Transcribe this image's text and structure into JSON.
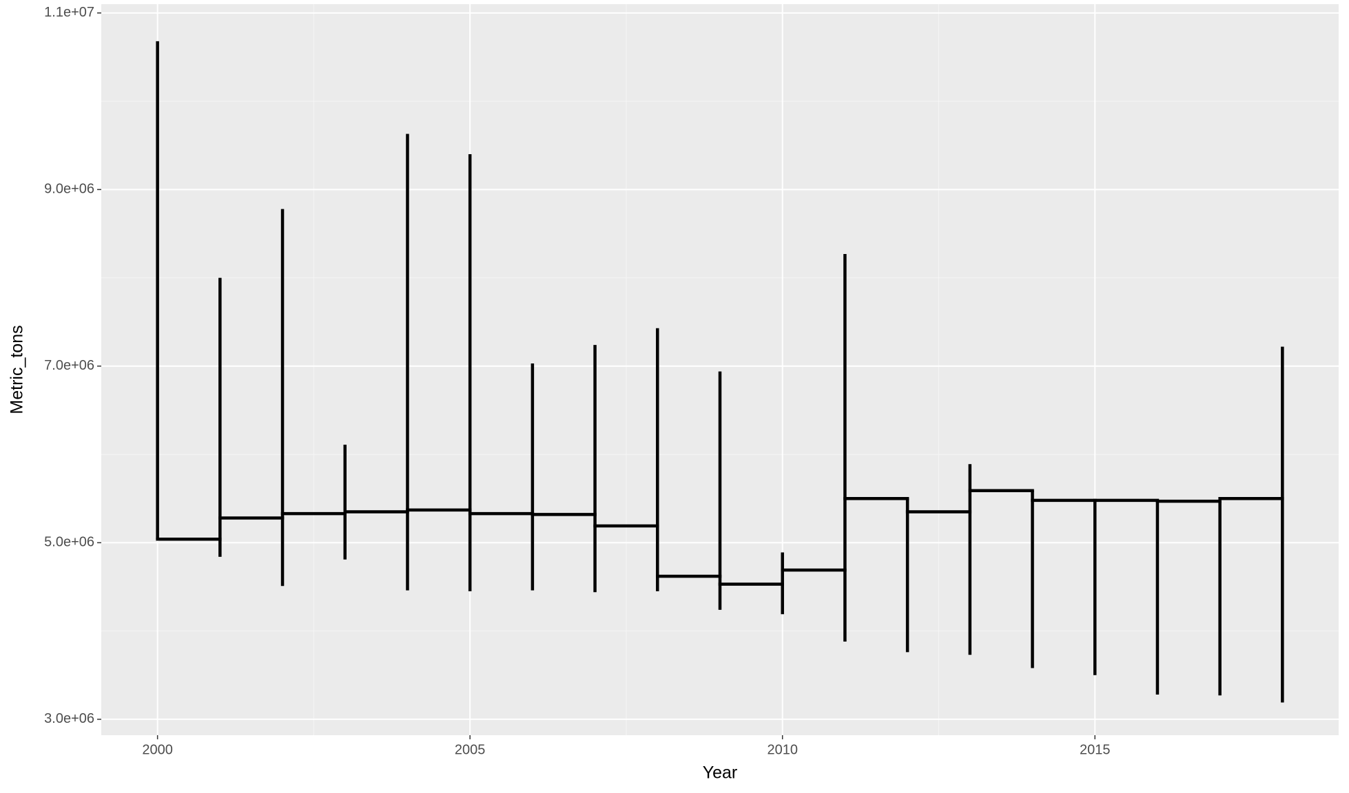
{
  "chart_data": {
    "type": "step-range",
    "x_label": "Year",
    "y_label": "Metric_tons",
    "x": [
      2000,
      2001,
      2002,
      2003,
      2004,
      2005,
      2006,
      2007,
      2008,
      2009,
      2010,
      2011,
      2012,
      2013,
      2014,
      2015,
      2016,
      2017,
      2018
    ],
    "step_values": [
      5040000,
      5280000,
      5330000,
      5350000,
      5370000,
      5330000,
      5320000,
      5190000,
      4620000,
      4530000,
      4690000,
      5500000,
      5350000,
      5590000,
      5480000,
      5480000,
      5470000,
      5500000,
      null
    ],
    "high": [
      10680000,
      8000000,
      8780000,
      6110000,
      9630000,
      9400000,
      7030000,
      7240000,
      7430000,
      6940000,
      4890000,
      8270000,
      5500000,
      5890000,
      5590000,
      5480000,
      5480000,
      5470000,
      7220000
    ],
    "low": [
      5040000,
      4840000,
      4510000,
      4810000,
      4460000,
      4450000,
      4460000,
      4440000,
      4450000,
      4240000,
      4190000,
      3880000,
      3760000,
      3730000,
      3580000,
      3500000,
      3280000,
      3270000,
      3190000
    ],
    "color": "#000000",
    "xlim": [
      1999.1,
      2018.9
    ],
    "xticks": [
      2000,
      2005,
      2010,
      2015
    ],
    "ylim": [
      2820000,
      11100000
    ],
    "yticks": [
      {
        "value": 3000000,
        "label": "3.0e+06"
      },
      {
        "value": 5000000,
        "label": "5.0e+06"
      },
      {
        "value": 7000000,
        "label": "7.0e+06"
      },
      {
        "value": 9000000,
        "label": "9.0e+06"
      },
      {
        "value": 11000000,
        "label": "1.1e+07"
      }
    ],
    "grid": true
  }
}
